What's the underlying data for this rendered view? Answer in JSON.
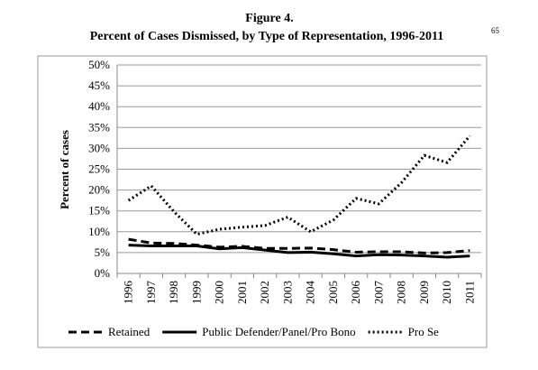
{
  "chart_data": {
    "type": "line",
    "title": "Figure 4.",
    "subtitle": "Percent of Cases Dismissed, by Type of Representation, 1996-2011",
    "subtitle_note": "65",
    "y_label": "Percent of cases",
    "categories": [
      "1996",
      "1997",
      "1998",
      "1999",
      "2000",
      "2001",
      "2002",
      "2003",
      "2004",
      "2005",
      "2006",
      "2007",
      "2008",
      "2009",
      "2010",
      "2011"
    ],
    "series": [
      {
        "name": "Retained",
        "color": "#000000",
        "dash": "dashed",
        "values": [
          8.2,
          7.3,
          7.2,
          6.8,
          6.3,
          6.5,
          6.0,
          6.0,
          6.1,
          5.7,
          5.1,
          5.2,
          5.2,
          4.9,
          5.0,
          5.5
        ]
      },
      {
        "name": "Public Defender/Panel/Pro Bono",
        "color": "#000000",
        "dash": "solid",
        "values": [
          6.8,
          6.6,
          6.6,
          6.6,
          5.9,
          6.2,
          5.6,
          5.0,
          5.1,
          4.7,
          4.2,
          4.5,
          4.4,
          4.2,
          3.9,
          4.2
        ]
      },
      {
        "name": "Pro Se",
        "color": "#000000",
        "dash": "dotted",
        "values": [
          17.5,
          21.0,
          14.8,
          9.4,
          10.6,
          11.1,
          11.5,
          13.5,
          10.0,
          12.8,
          18.0,
          16.7,
          21.8,
          28.3,
          26.6,
          33.0
        ]
      }
    ],
    "ylim": [
      0,
      50
    ],
    "yticks": [
      {
        "value": 0,
        "label": "0%"
      },
      {
        "value": 5,
        "label": "5%"
      },
      {
        "value": 10,
        "label": "10%"
      },
      {
        "value": 15,
        "label": "15%"
      },
      {
        "value": 20,
        "label": "20%"
      },
      {
        "value": 25,
        "label": "25%"
      },
      {
        "value": 30,
        "label": "30%"
      },
      {
        "value": 35,
        "label": "35%"
      },
      {
        "value": 40,
        "label": "40%"
      },
      {
        "value": 45,
        "label": "45%"
      },
      {
        "value": 50,
        "label": "50%"
      }
    ],
    "grid": true,
    "legend": "bottom"
  }
}
